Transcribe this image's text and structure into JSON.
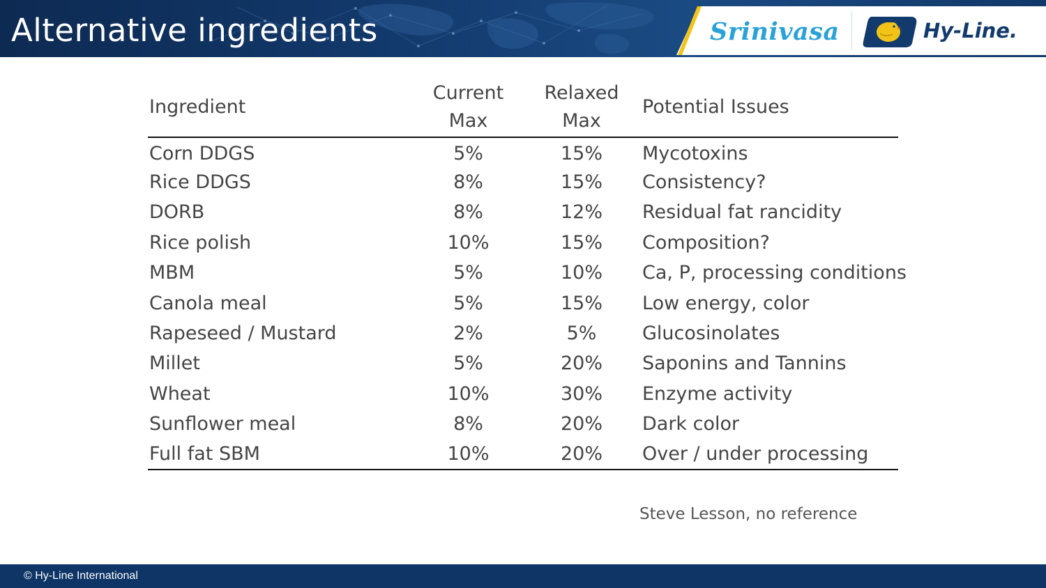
{
  "slide": {
    "title": "Alternative ingredients"
  },
  "logos": {
    "srinivasa": "Srinivasa",
    "hyline": "Hy-Line."
  },
  "table": {
    "headers": {
      "ingredient": "Ingredient",
      "current_max_line1": "Current",
      "current_max_line2": "Max",
      "relaxed_max_line1": "Relaxed",
      "relaxed_max_line2": "Max",
      "issues": "Potential Issues"
    },
    "rows": [
      {
        "ingredient": "Corn DDGS",
        "current": "5%",
        "relaxed": "15%",
        "issues": "Mycotoxins"
      },
      {
        "ingredient": "Rice DDGS",
        "current": "8%",
        "relaxed": "15%",
        "issues": "Consistency?"
      },
      {
        "ingredient": "DORB",
        "current": "8%",
        "relaxed": "12%",
        "issues": "Residual fat rancidity"
      },
      {
        "ingredient": "Rice polish",
        "current": "10%",
        "relaxed": "15%",
        "issues": "Composition?"
      },
      {
        "ingredient": "MBM",
        "current": "5%",
        "relaxed": "10%",
        "issues": "Ca, P, processing conditions"
      },
      {
        "ingredient": "Canola meal",
        "current": "5%",
        "relaxed": "15%",
        "issues": "Low energy, color"
      },
      {
        "ingredient": "Rapeseed / Mustard",
        "current": "2%",
        "relaxed": "5%",
        "issues": "Glucosinolates"
      },
      {
        "ingredient": "Millet",
        "current": "5%",
        "relaxed": "20%",
        "issues": "Saponins and Tannins"
      },
      {
        "ingredient": "Wheat",
        "current": "10%",
        "relaxed": "30%",
        "issues": "Enzyme activity"
      },
      {
        "ingredient": "Sunflower meal",
        "current": "8%",
        "relaxed": "20%",
        "issues": "Dark color"
      },
      {
        "ingredient": "Full fat SBM",
        "current": "10%",
        "relaxed": "20%",
        "issues": "Over / under processing"
      }
    ]
  },
  "citation": "Steve Lesson, no reference",
  "footer": {
    "copyright": "© Hy-Line International"
  },
  "colors": {
    "header_bg": "#12386a",
    "footer_bg": "#0e3566",
    "srinivasa_blue": "#2aa2d8",
    "accent_yellow": "#f2c417",
    "body_text": "#444444"
  }
}
